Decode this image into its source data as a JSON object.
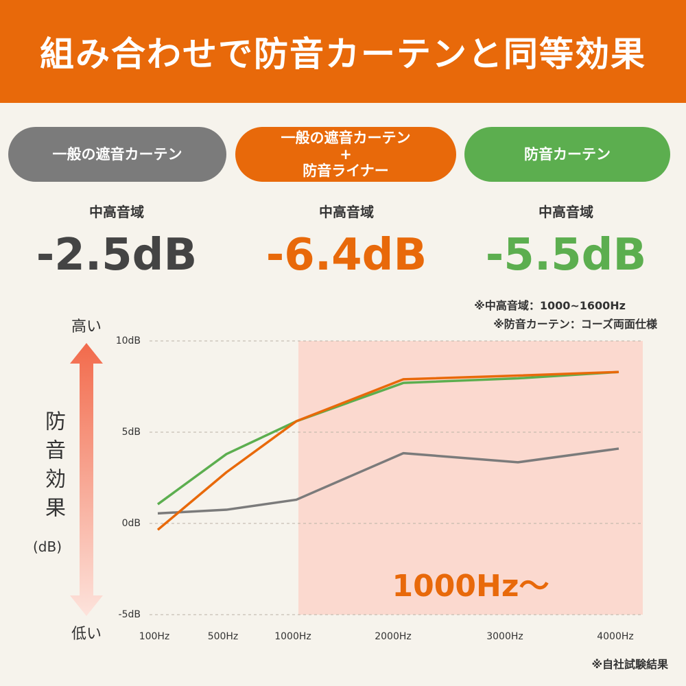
{
  "header": {
    "title": "組み合わせで防音カーテンと同等効果"
  },
  "stats": [
    {
      "label": "中高音域",
      "value": "-2.5dB"
    },
    {
      "label": "中高音域",
      "value": "-6.4dB"
    },
    {
      "label": "中高音域",
      "value": "-5.5dB"
    }
  ],
  "notes": [
    "※中高音域：1000~1600Hz",
    "※防音カーテン：コーズ両面仕様"
  ],
  "footnote": "※自社試験結果",
  "chart_data": {
    "type": "line",
    "ylabel": "防音効果",
    "ylabel_unit": "(dB)",
    "y_high": "高い",
    "y_low": "低い",
    "annotation": "1000Hz〜",
    "categories": [
      "100Hz",
      "500Hz",
      "1000Hz",
      "2000Hz",
      "3000Hz",
      "4000Hz"
    ],
    "series": [
      {
        "name": "一般の遮音カーテン",
        "color": "#7b7b7b",
        "values": [
          0.55,
          0.75,
          1.3,
          3.85,
          3.35,
          4.1
        ]
      },
      {
        "name": "一般の遮音カーテン\n+\n防音ライナー",
        "color": "#e8690a",
        "values": [
          -0.35,
          2.8,
          5.6,
          7.9,
          8.1,
          8.3
        ]
      },
      {
        "name": "防音カーテン",
        "color": "#5cae4f",
        "values": [
          1.05,
          3.8,
          5.6,
          7.7,
          7.95,
          8.3
        ]
      }
    ],
    "ylim": [
      -5,
      10
    ],
    "yticks": [
      {
        "value": -5,
        "label": "-5dB"
      },
      {
        "value": 0,
        "label": "0dB"
      },
      {
        "value": 5,
        "label": "5dB"
      },
      {
        "value": 10,
        "label": "10dB"
      }
    ],
    "grid": true
  }
}
